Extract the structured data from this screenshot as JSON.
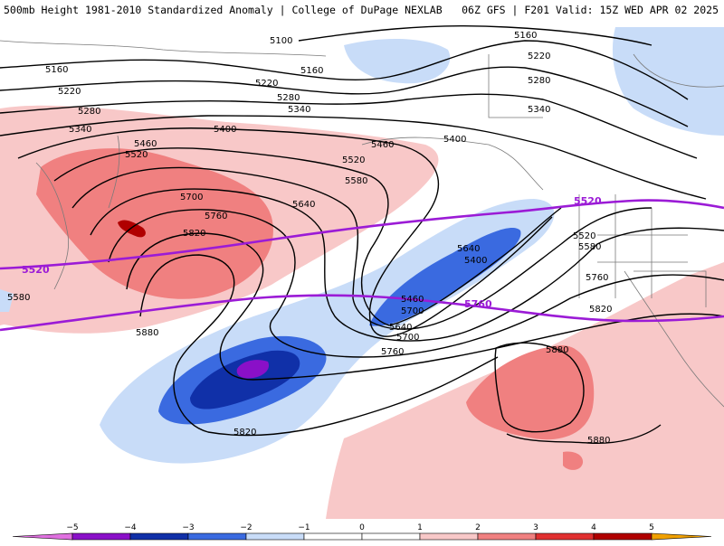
{
  "header": {
    "title_left": "500mb Height 1981-2010 Standardized Anomaly | College of DuPage NEXLAB",
    "title_right": "06Z GFS | F201 Valid: 15Z WED APR 02 2025"
  },
  "colors": {
    "neg5": "#e070e0",
    "neg4": "#8a10c8",
    "neg3": "#1030a8",
    "neg2": "#3a6ae0",
    "neg1": "#c8dcf8",
    "pos1": "#f8c8c8",
    "pos2": "#f08080",
    "pos3": "#e03030",
    "pos4": "#b00000",
    "pos5": "#f0a000",
    "climatology": "#9b1bd6",
    "height_contour": "#000000",
    "coastline": "#7a7a7a"
  },
  "contour_labels": [
    "5100",
    "5160",
    "5220",
    "5280",
    "5340",
    "5400",
    "5460",
    "5520",
    "5580",
    "5640",
    "5700",
    "5760",
    "5820",
    "5880",
    "5160",
    "5220",
    "5280",
    "5340",
    "5400",
    "5460",
    "5520",
    "5580",
    "5640",
    "5700",
    "5760",
    "5820",
    "5880",
    "5160",
    "5220",
    "5280",
    "5340",
    "5400",
    "5460",
    "5520",
    "5580",
    "5640",
    "5700",
    "5760",
    "5820",
    "5880"
  ],
  "climatology_labels": [
    "5520",
    "5760",
    "5520"
  ],
  "colorbar": {
    "ticks": [
      "−5",
      "−4",
      "−3",
      "−2",
      "−1",
      "0",
      "1",
      "2",
      "3",
      "4",
      "5"
    ],
    "bins": [
      "neg5",
      "neg4",
      "neg3",
      "neg2",
      "neg1",
      "zero_neg",
      "zero_pos",
      "pos1",
      "pos2",
      "pos3",
      "pos4",
      "pos5"
    ]
  }
}
